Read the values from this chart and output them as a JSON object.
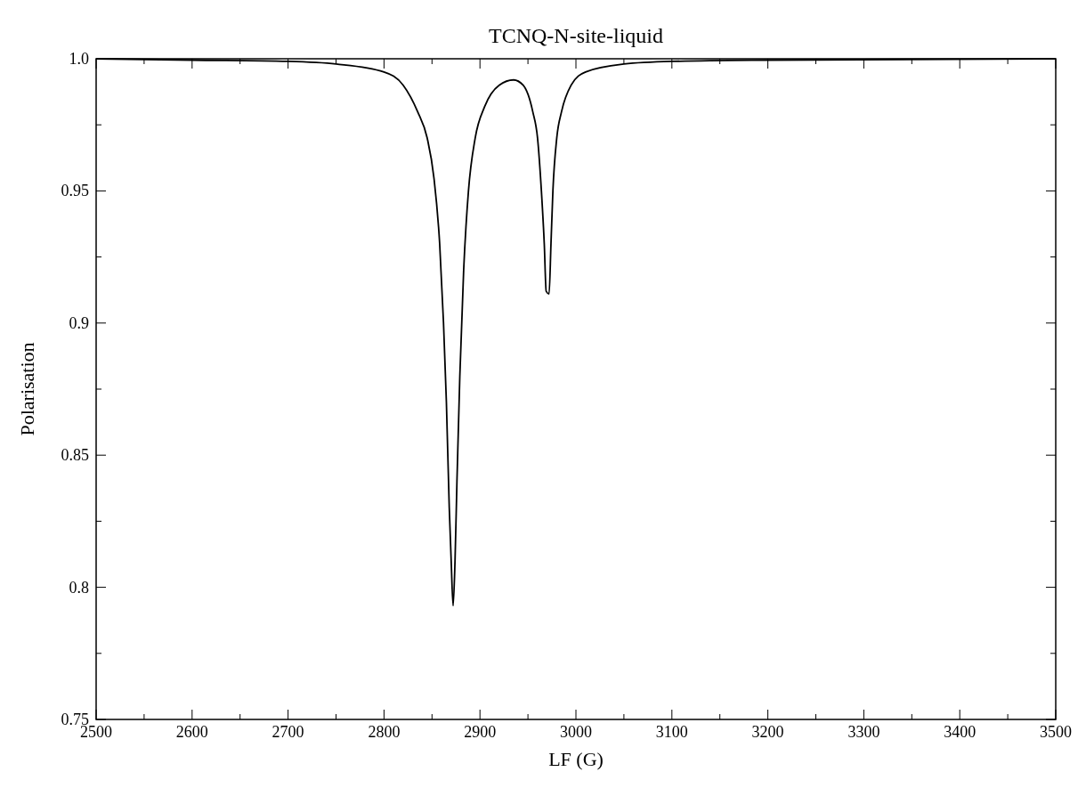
{
  "chart_data": {
    "type": "line",
    "title": "TCNQ-N-site-liquid",
    "xlabel": "LF (G)",
    "ylabel": "Polarisation",
    "xlim": [
      2500,
      3500
    ],
    "ylim": [
      0.75,
      1.0
    ],
    "xticks": [
      2500,
      {
        "value": 2550,
        "label": null
      },
      2600,
      {
        "value": 2650,
        "label": null
      },
      2700,
      {
        "value": 2750,
        "label": null
      },
      2800,
      {
        "value": 2850,
        "label": null
      },
      2900,
      {
        "value": 2950,
        "label": null
      },
      3000,
      {
        "value": 3050,
        "label": null
      },
      3100,
      {
        "value": 3150,
        "label": null
      },
      3200,
      {
        "value": 3250,
        "label": null
      },
      3300,
      {
        "value": 3350,
        "label": null
      },
      3400,
      {
        "value": 3450,
        "label": null
      },
      3500
    ],
    "yticks": [
      0.75,
      {
        "value": 0.775,
        "label": null
      },
      0.8,
      {
        "value": 0.825,
        "label": null
      },
      0.85,
      {
        "value": 0.875,
        "label": null
      },
      0.9,
      {
        "value": 0.925,
        "label": null
      },
      0.95,
      {
        "value": 0.975,
        "label": null
      },
      {
        "value": 1.0,
        "label": "1.0"
      }
    ],
    "marker": "none",
    "line_style": "solid",
    "series": [
      {
        "color": "#000000",
        "x": [
          2500,
          2600,
          2700,
          2750,
          2800,
          2820,
          2835,
          2845,
          2852,
          2858,
          2862,
          2865,
          2868,
          2870,
          2872,
          2874,
          2876,
          2879,
          2883,
          2888,
          2895,
          2905,
          2920,
          2935,
          2945,
          2955,
          2960,
          2964,
          2967,
          2969,
          2972,
          2974,
          2976,
          2980,
          2985,
          2995,
          3010,
          3050,
          3100,
          3200,
          3500
        ],
        "values": [
          1.0,
          0.9995,
          0.999,
          0.998,
          0.995,
          0.99,
          0.98,
          0.97,
          0.955,
          0.93,
          0.9,
          0.87,
          0.83,
          0.81,
          0.793,
          0.81,
          0.84,
          0.88,
          0.92,
          0.95,
          0.97,
          0.982,
          0.99,
          0.992,
          0.99,
          0.98,
          0.97,
          0.95,
          0.93,
          0.912,
          0.911,
          0.93,
          0.95,
          0.97,
          0.98,
          0.99,
          0.995,
          0.998,
          0.999,
          0.9995,
          1.0
        ]
      }
    ]
  }
}
